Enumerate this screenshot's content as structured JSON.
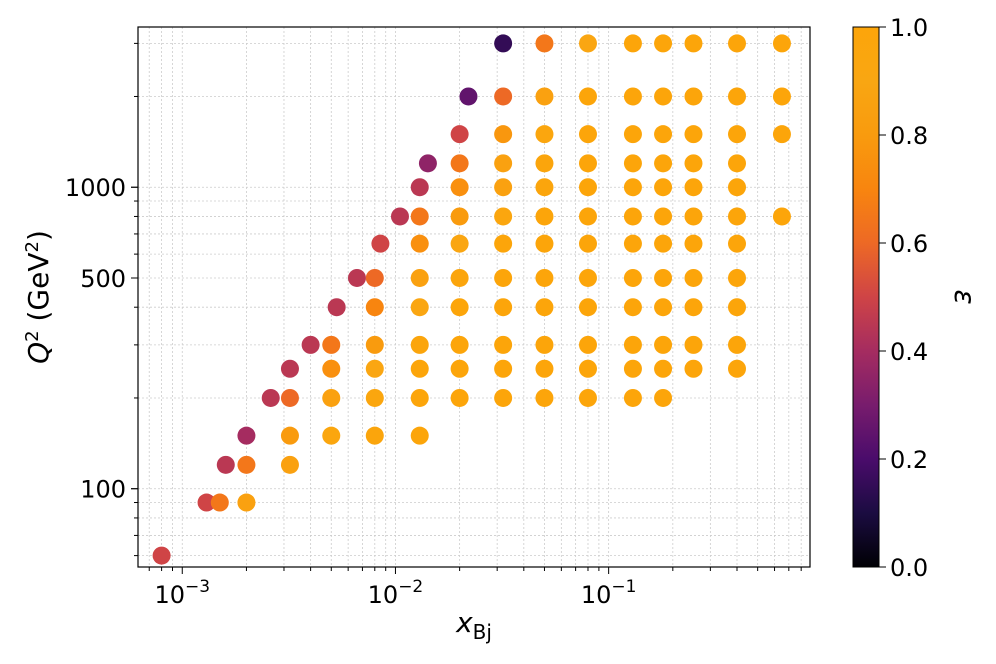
{
  "chart_data": {
    "type": "scatter",
    "xlabel": "x_Bj",
    "ylabel": "Q^2 (GeV^2)",
    "xscale": "log",
    "yscale": "log",
    "xlim": [
      0.00062,
      0.88
    ],
    "ylim": [
      55,
      3400
    ],
    "grid": true,
    "xticks": [
      {
        "value": 0.001,
        "base": "10",
        "exp": "−3"
      },
      {
        "value": 0.01,
        "base": "10",
        "exp": "−2"
      },
      {
        "value": 0.1,
        "base": "10",
        "exp": "−1"
      }
    ],
    "yticks": [
      {
        "value": 100,
        "label": "100"
      },
      {
        "value": 500,
        "label": "500"
      },
      {
        "value": 1000,
        "label": "1000"
      }
    ],
    "colorbar": {
      "label": "ε",
      "range": [
        0.0,
        1.0
      ],
      "colormap": "inferno",
      "ticks": [
        "0.0",
        "0.2",
        "0.4",
        "0.6",
        "0.8",
        "1.0"
      ]
    },
    "points": [
      [
        0.0008,
        60,
        0.5
      ],
      [
        0.0013,
        90,
        0.5
      ],
      [
        0.0015,
        90,
        0.65
      ],
      [
        0.002,
        90,
        0.85
      ],
      [
        0.0016,
        120,
        0.45
      ],
      [
        0.002,
        120,
        0.65
      ],
      [
        0.0032,
        120,
        0.85
      ],
      [
        0.002,
        150,
        0.4
      ],
      [
        0.0032,
        150,
        0.8
      ],
      [
        0.005,
        150,
        0.95
      ],
      [
        0.008,
        150,
        0.97
      ],
      [
        0.013,
        150,
        1.0
      ],
      [
        0.0026,
        200,
        0.45
      ],
      [
        0.0032,
        200,
        0.6
      ],
      [
        0.005,
        200,
        0.85
      ],
      [
        0.008,
        200,
        0.95
      ],
      [
        0.013,
        200,
        1.0
      ],
      [
        0.02,
        200,
        1.0
      ],
      [
        0.032,
        200,
        1.0
      ],
      [
        0.05,
        200,
        1.0
      ],
      [
        0.08,
        200,
        1.0
      ],
      [
        0.13,
        200,
        1.0
      ],
      [
        0.18,
        200,
        1.0
      ],
      [
        0.0032,
        250,
        0.45
      ],
      [
        0.005,
        250,
        0.75
      ],
      [
        0.008,
        250,
        0.9
      ],
      [
        0.013,
        250,
        1.0
      ],
      [
        0.02,
        250,
        1.0
      ],
      [
        0.032,
        250,
        1.0
      ],
      [
        0.05,
        250,
        1.0
      ],
      [
        0.08,
        250,
        1.0
      ],
      [
        0.13,
        250,
        1.0
      ],
      [
        0.18,
        250,
        1.0
      ],
      [
        0.25,
        250,
        1.0
      ],
      [
        0.4,
        250,
        1.0
      ],
      [
        0.004,
        300,
        0.45
      ],
      [
        0.005,
        300,
        0.65
      ],
      [
        0.008,
        300,
        0.8
      ],
      [
        0.013,
        300,
        0.97
      ],
      [
        0.02,
        300,
        1.0
      ],
      [
        0.032,
        300,
        1.0
      ],
      [
        0.05,
        300,
        1.0
      ],
      [
        0.08,
        300,
        1.0
      ],
      [
        0.13,
        300,
        1.0
      ],
      [
        0.18,
        300,
        1.0
      ],
      [
        0.25,
        300,
        1.0
      ],
      [
        0.4,
        300,
        1.0
      ],
      [
        0.0053,
        400,
        0.45
      ],
      [
        0.008,
        400,
        0.7
      ],
      [
        0.013,
        400,
        0.9
      ],
      [
        0.02,
        400,
        1.0
      ],
      [
        0.032,
        400,
        1.0
      ],
      [
        0.05,
        400,
        1.0
      ],
      [
        0.08,
        400,
        1.0
      ],
      [
        0.13,
        400,
        1.0
      ],
      [
        0.18,
        400,
        1.0
      ],
      [
        0.25,
        400,
        1.0
      ],
      [
        0.4,
        400,
        1.0
      ],
      [
        0.0066,
        500,
        0.45
      ],
      [
        0.008,
        500,
        0.6
      ],
      [
        0.013,
        500,
        0.85
      ],
      [
        0.02,
        500,
        0.97
      ],
      [
        0.032,
        500,
        1.0
      ],
      [
        0.05,
        500,
        1.0
      ],
      [
        0.08,
        500,
        1.0
      ],
      [
        0.13,
        500,
        1.0
      ],
      [
        0.18,
        500,
        1.0
      ],
      [
        0.25,
        500,
        1.0
      ],
      [
        0.4,
        500,
        1.0
      ],
      [
        0.0085,
        650,
        0.5
      ],
      [
        0.013,
        650,
        0.75
      ],
      [
        0.02,
        650,
        0.9
      ],
      [
        0.032,
        650,
        1.0
      ],
      [
        0.05,
        650,
        1.0
      ],
      [
        0.08,
        650,
        1.0
      ],
      [
        0.13,
        650,
        1.0
      ],
      [
        0.18,
        650,
        1.0
      ],
      [
        0.25,
        650,
        1.0
      ],
      [
        0.4,
        650,
        1.0
      ],
      [
        0.0105,
        800,
        0.45
      ],
      [
        0.013,
        800,
        0.65
      ],
      [
        0.02,
        800,
        0.8
      ],
      [
        0.032,
        800,
        0.95
      ],
      [
        0.05,
        800,
        1.0
      ],
      [
        0.08,
        800,
        1.0
      ],
      [
        0.13,
        800,
        1.0
      ],
      [
        0.18,
        800,
        1.0
      ],
      [
        0.25,
        800,
        1.0
      ],
      [
        0.4,
        800,
        1.0
      ],
      [
        0.65,
        800,
        1.0
      ],
      [
        0.013,
        1000,
        0.45
      ],
      [
        0.02,
        1000,
        0.75
      ],
      [
        0.032,
        1000,
        0.85
      ],
      [
        0.05,
        1000,
        0.97
      ],
      [
        0.08,
        1000,
        1.0
      ],
      [
        0.13,
        1000,
        1.0
      ],
      [
        0.18,
        1000,
        1.0
      ],
      [
        0.25,
        1000,
        1.0
      ],
      [
        0.4,
        1000,
        1.0
      ],
      [
        0.0142,
        1200,
        0.35
      ],
      [
        0.02,
        1200,
        0.65
      ],
      [
        0.032,
        1200,
        0.85
      ],
      [
        0.05,
        1200,
        0.97
      ],
      [
        0.08,
        1200,
        1.0
      ],
      [
        0.13,
        1200,
        1.0
      ],
      [
        0.18,
        1200,
        1.0
      ],
      [
        0.25,
        1200,
        1.0
      ],
      [
        0.4,
        1200,
        1.0
      ],
      [
        0.02,
        1500,
        0.5
      ],
      [
        0.032,
        1500,
        0.78
      ],
      [
        0.05,
        1500,
        0.95
      ],
      [
        0.08,
        1500,
        1.0
      ],
      [
        0.13,
        1500,
        1.0
      ],
      [
        0.18,
        1500,
        1.0
      ],
      [
        0.25,
        1500,
        1.0
      ],
      [
        0.4,
        1500,
        1.0
      ],
      [
        0.65,
        1500,
        1.0
      ],
      [
        0.022,
        2000,
        0.25
      ],
      [
        0.032,
        2000,
        0.6
      ],
      [
        0.05,
        2000,
        0.85
      ],
      [
        0.08,
        2000,
        1.0
      ],
      [
        0.13,
        2000,
        1.0
      ],
      [
        0.18,
        2000,
        1.0
      ],
      [
        0.25,
        2000,
        1.0
      ],
      [
        0.4,
        2000,
        1.0
      ],
      [
        0.65,
        2000,
        1.0
      ],
      [
        0.032,
        3000,
        0.15
      ],
      [
        0.05,
        3000,
        0.65
      ],
      [
        0.08,
        3000,
        0.9
      ],
      [
        0.13,
        3000,
        1.0
      ],
      [
        0.18,
        3000,
        1.0
      ],
      [
        0.25,
        3000,
        1.0
      ],
      [
        0.4,
        3000,
        1.0
      ],
      [
        0.65,
        3000,
        1.0
      ]
    ]
  }
}
